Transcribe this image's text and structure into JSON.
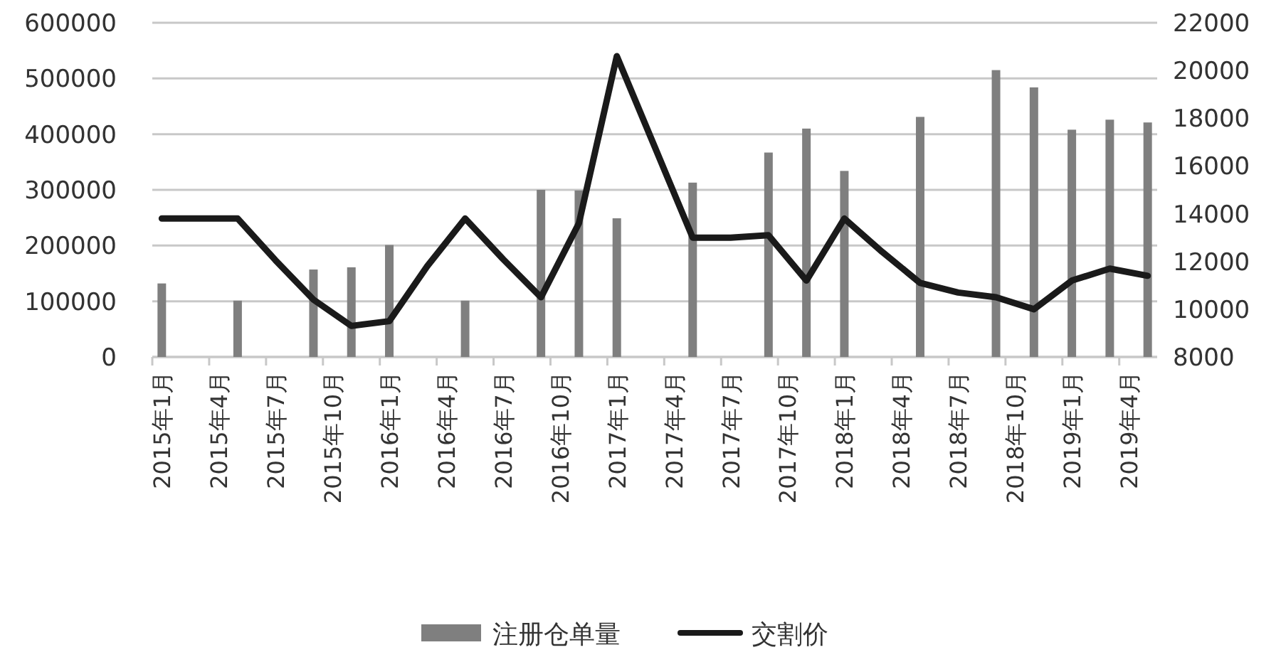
{
  "chart_data": {
    "type": "bar",
    "x": [
      "2015-01",
      "2015-05",
      "2015-09",
      "2015-11",
      "2016-01",
      "2016-05",
      "2016-09",
      "2016-11",
      "2017-01",
      "2017-05",
      "2017-09",
      "2017-11",
      "2018-01",
      "2018-05",
      "2018-09",
      "2018-11",
      "2019-01",
      "2019-03",
      "2019-05"
    ],
    "series": [
      {
        "name": "注册仓单量",
        "color": "#7f7f7f",
        "values": [
          132000,
          101000,
          157000,
          161000,
          201000,
          101000,
          300000,
          299000,
          249000,
          313000,
          367000,
          410000,
          334000,
          431000,
          515000,
          484000,
          408000,
          426000,
          421000
        ]
      },
      {
        "name": "交割价",
        "type": "line",
        "axis": "y2",
        "color": "#1a1a1a",
        "x": [
          "2015-01",
          "2015-03",
          "2015-05",
          "2015-07",
          "2015-09",
          "2015-11",
          "2016-01",
          "2016-03",
          "2016-05",
          "2016-07",
          "2016-09",
          "2016-11",
          "2017-01",
          "2017-03",
          "2017-05",
          "2017-07",
          "2017-09",
          "2017-11",
          "2018-01",
          "2018-03",
          "2018-05",
          "2018-07",
          "2018-09",
          "2018-11",
          "2019-01",
          "2019-03",
          "2019-05"
        ],
        "values": [
          13800,
          13800,
          13800,
          12050,
          10400,
          9300,
          9500,
          11800,
          13800,
          12100,
          10500,
          13600,
          20600,
          16800,
          13000,
          13000,
          13100,
          11200,
          13800,
          12400,
          11100,
          10700,
          10500,
          10000,
          11200,
          11700,
          11400
        ]
      }
    ],
    "xlim": [
      "2014-12-16",
      "2019-05-16"
    ],
    "xticks": [
      {
        "value": "2015-01",
        "label": "2015年1月"
      },
      {
        "value": "2015-04",
        "label": "2015年4月"
      },
      {
        "value": "2015-07",
        "label": "2015年7月"
      },
      {
        "value": "2015-10",
        "label": "2015年10月"
      },
      {
        "value": "2016-01",
        "label": "2016年1月"
      },
      {
        "value": "2016-04",
        "label": "2016年4月"
      },
      {
        "value": "2016-07",
        "label": "2016年7月"
      },
      {
        "value": "2016-10",
        "label": "2016年10月"
      },
      {
        "value": "2017-01",
        "label": "2017年1月"
      },
      {
        "value": "2017-04",
        "label": "2017年4月"
      },
      {
        "value": "2017-07",
        "label": "2017年7月"
      },
      {
        "value": "2017-10",
        "label": "2017年10月"
      },
      {
        "value": "2018-01",
        "label": "2018年1月"
      },
      {
        "value": "2018-04",
        "label": "2018年4月"
      },
      {
        "value": "2018-07",
        "label": "2018年7月"
      },
      {
        "value": "2018-10",
        "label": "2018年10月"
      },
      {
        "value": "2019-01",
        "label": "2019年1月"
      },
      {
        "value": "2019-04",
        "label": "2019年4月"
      }
    ],
    "ylim": [
      0,
      600000
    ],
    "yticks": [
      0,
      100000,
      200000,
      300000,
      400000,
      500000,
      600000
    ],
    "y2lim": [
      8000,
      22000
    ],
    "y2ticks": [
      8000,
      10000,
      12000,
      14000,
      16000,
      18000,
      20000,
      22000
    ],
    "grid": "y",
    "legend": "bottom"
  }
}
